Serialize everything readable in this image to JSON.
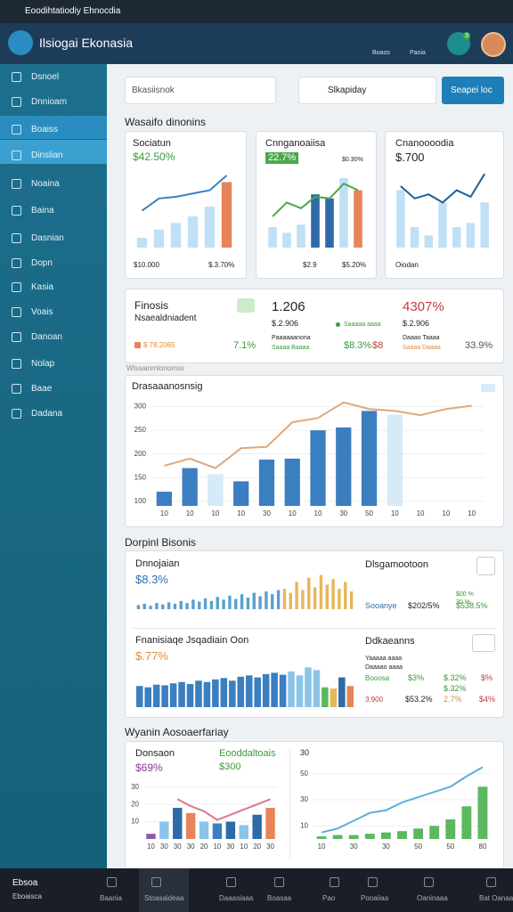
{
  "window": {
    "title": "Eoodihtatiodiy Ehnocdia"
  },
  "header": {
    "brand": "Ilsiogai Ekonasia",
    "actions": [
      "Boaos",
      "Paoia"
    ],
    "badge": "3"
  },
  "sidebar": {
    "items": [
      "Dsnoel",
      "Dnnioam",
      "Boaiss",
      "Dinslian",
      "Noaina",
      "Baina",
      "Dasnian",
      "Dopn",
      "Kasia",
      "Voais",
      "Danoan",
      "Nolap",
      "Baae",
      "Dadana"
    ]
  },
  "toolbar": {
    "search": "Bkasiisnok",
    "filter": "Slkapiday",
    "button": "Seapei loc"
  },
  "overview": {
    "title": "Wasaifo dinonins",
    "cards": [
      {
        "title": "Sociatun",
        "value": "$42.50%",
        "foot": [
          "$10.000",
          "$.3.70%"
        ],
        "chart": {
          "type": "bar-line",
          "ylim": [
            0,
            100
          ],
          "bars": [
            {
              "color": "#bfe0f5",
              "values": [
                12,
                22,
                30,
                38,
                50
              ]
            },
            {
              "color": "#e8845a",
              "values": [
                80
              ]
            }
          ],
          "line": {
            "color": "#3a7fc0",
            "values": [
              45,
              60,
              62,
              66,
              70,
              88
            ]
          }
        }
      },
      {
        "title": "Cnnganoaiisa",
        "value": "22.7%",
        "note": "$0.30%",
        "foot": [
          "$2.9",
          "$5.20%"
        ],
        "chart": {
          "type": "bar-line",
          "ylim": [
            0,
            100
          ],
          "bars": [
            {
              "color": "#bfe0f5",
              "values": [
                25,
                18,
                28
              ]
            },
            {
              "color": "#2e6aa8",
              "values": [
                65,
                60
              ]
            },
            {
              "color": "#bfe0f5",
              "values": [
                85
              ]
            },
            {
              "color": "#e8845a",
              "values": [
                70
              ]
            }
          ],
          "line": {
            "color": "#4aa84a",
            "values": [
              38,
              55,
              48,
              62,
              60,
              78,
              70
            ]
          }
        }
      },
      {
        "title": "Cnanoooodia",
        "value": "$.700",
        "foot": [
          "Oiodan"
        ],
        "chart": {
          "type": "bar-line",
          "ylim": [
            0,
            100
          ],
          "bars": [
            {
              "color": "#bfe0f5",
              "values": [
                70,
                25,
                15,
                55,
                25,
                30,
                55
              ]
            }
          ],
          "line": {
            "color": "#1e5f9a",
            "values": [
              75,
              60,
              65,
              55,
              70,
              62,
              90
            ]
          }
        }
      }
    ]
  },
  "kpis": {
    "left": {
      "title": "Finosis",
      "subtitle": "Nsaealdniadent",
      "amount": "$ 78.2065",
      "change": "7.1%"
    },
    "middle": {
      "value": "1.206",
      "sub": "$.2.906",
      "label": "Paaaaaanona",
      "status": "Saaaa Baaaa",
      "legend": "Saaaaa aaaa",
      "a": "$8.3%",
      "b": "$8"
    },
    "right": {
      "value": "4307%",
      "sub": "$.2.906",
      "label": "Daaao Taaaa",
      "status": "Saaaa Daaaa",
      "change": "33.9%"
    },
    "caption": "Wlssainrnlonomss"
  },
  "trend": {
    "title": "Drasaaanosnsig",
    "chart": {
      "type": "bar-line",
      "ylim": [
        90,
        320
      ],
      "yticks": [
        100,
        150,
        200,
        250,
        300
      ],
      "categories": [
        "10",
        "10",
        "10",
        "10",
        "30",
        "10",
        "10",
        "30",
        "50",
        "10",
        "10",
        "10",
        "10"
      ],
      "bars": [
        {
          "color": "#3b7fc0",
          "values": [
            120,
            170
          ]
        },
        {
          "color": "#d6eaf8",
          "values": [
            157
          ]
        },
        {
          "color": "#3b7fc0",
          "values": [
            142,
            188,
            190,
            250,
            256,
            291
          ]
        },
        {
          "color": "#d6eaf8",
          "values": [
            283
          ]
        }
      ],
      "line": {
        "color": "#e0a878",
        "values": [
          175,
          190,
          170,
          212,
          215,
          267,
          276,
          309,
          295,
          291,
          282,
          295,
          302
        ]
      }
    }
  },
  "details": {
    "title": "Dorpinl Bisonis",
    "panels": [
      {
        "title": "Dnnojaian",
        "value": "$8.3%",
        "chart": {
          "type": "bar",
          "ylim": [
            0,
            60
          ],
          "bars": [
            {
              "color": "#5aa0d0",
              "values": [
                6,
                8,
                5,
                9,
                7,
                10,
                8,
                12,
                9,
                14,
                11,
                16,
                12,
                18,
                14,
                20,
                15,
                22,
                17,
                24,
                19,
                26,
                22,
                28
              ]
            },
            {
              "color": "#e8b65a",
              "values": [
                30,
                24,
                40,
                28,
                46,
                32,
                50,
                36,
                44,
                30,
                40,
                26
              ]
            }
          ]
        }
      },
      {
        "title": "Fnanisiaqe Jsqadiain Oon",
        "value": "$.77%",
        "chart": {
          "type": "bar",
          "ylim": [
            0,
            70
          ],
          "bars": [
            {
              "color": "#3b7fc0",
              "values": [
                32,
                30,
                34,
                33,
                36,
                38,
                35,
                40,
                38,
                42,
                44,
                40,
                46,
                48,
                45,
                50,
                52,
                49
              ]
            },
            {
              "color": "#8cc4e8",
              "values": [
                54,
                48,
                60,
                56
              ]
            },
            {
              "color": "#5cb85c",
              "values": [
                30
              ]
            },
            {
              "color": "#e8b65a",
              "values": [
                28
              ]
            },
            {
              "color": "#2e6aa8",
              "values": [
                45
              ]
            },
            {
              "color": "#e8845a",
              "values": [
                32
              ]
            }
          ]
        }
      }
    ],
    "stats": [
      {
        "title": "Dlsgamootoon",
        "legend": [
          "$00 %",
          "30 %"
        ],
        "row": [
          "Sooanye",
          "$202/5%",
          "$538.5%"
        ]
      },
      {
        "title": "Ddkaeanns",
        "lines": [
          "Yaaaaa aaaa",
          "Daaaao aaaa"
        ],
        "rows": [
          [
            "Booosa",
            "$3%",
            "$.32%",
            "$%"
          ],
          [
            "3.900",
            "$53.2%",
            "2.7%",
            "$4%"
          ]
        ],
        "extra": "$.32%"
      }
    ]
  },
  "performance": {
    "title": "Wyanin Aosoaerfariay",
    "left": {
      "name": "Donsaon",
      "value": "$69%",
      "name2": "Eooddaltoais",
      "value2": "$300",
      "chart": {
        "type": "bar-line",
        "ylim": [
          0,
          35
        ],
        "yticks": [
          10,
          20,
          30
        ],
        "categories": [
          "10",
          "30",
          "30",
          "30",
          "20",
          "10",
          "30",
          "10",
          "20",
          "30"
        ],
        "bars": [
          {
            "color": "#8a5aa8",
            "values": [
              3
            ]
          },
          {
            "color": "#8cc4e8",
            "values": [
              10
            ]
          },
          {
            "color": "#2e6aa8",
            "values": [
              18
            ]
          },
          {
            "color": "#e8845a",
            "values": [
              15
            ]
          },
          {
            "color": "#8cc4e8",
            "values": [
              10
            ]
          },
          {
            "color": "#3b7fc0",
            "values": [
              9
            ]
          },
          {
            "color": "#2e6aa8",
            "values": [
              10
            ]
          },
          {
            "color": "#8cc4e8",
            "values": [
              8
            ]
          },
          {
            "color": "#2e6aa8",
            "values": [
              14
            ]
          },
          {
            "color": "#e8845a",
            "values": [
              18
            ]
          }
        ],
        "line": {
          "color": "#d87a8a",
          "values": [
            null,
            null,
            23,
            19,
            16,
            11,
            14,
            17,
            20,
            23
          ]
        }
      }
    },
    "right": {
      "label": "30",
      "chart": {
        "type": "bar-line",
        "ylim": [
          0,
          60
        ],
        "yticks": [
          10,
          30,
          50
        ],
        "categories": [
          "10",
          null,
          "30",
          null,
          "30",
          null,
          "50",
          null,
          "50",
          null,
          "80"
        ],
        "bars": [
          {
            "color": "#5cb85c",
            "values": [
              2,
              3,
              3,
              4,
              5,
              6,
              8,
              10,
              15,
              25,
              40
            ]
          }
        ],
        "line": {
          "color": "#5ab0d8",
          "values": [
            5,
            8,
            14,
            20,
            22,
            28,
            32,
            36,
            40,
            48,
            55
          ]
        }
      }
    }
  },
  "nav": {
    "status": [
      "Ebsoa",
      "Eboaisca"
    ],
    "items": [
      "Baania",
      "Stoasaideaa",
      "Daaasiaaa",
      "Boasaa",
      "Pao",
      "Pooaiiaa",
      "Oaninaaa",
      "Bat Oanaa"
    ]
  }
}
